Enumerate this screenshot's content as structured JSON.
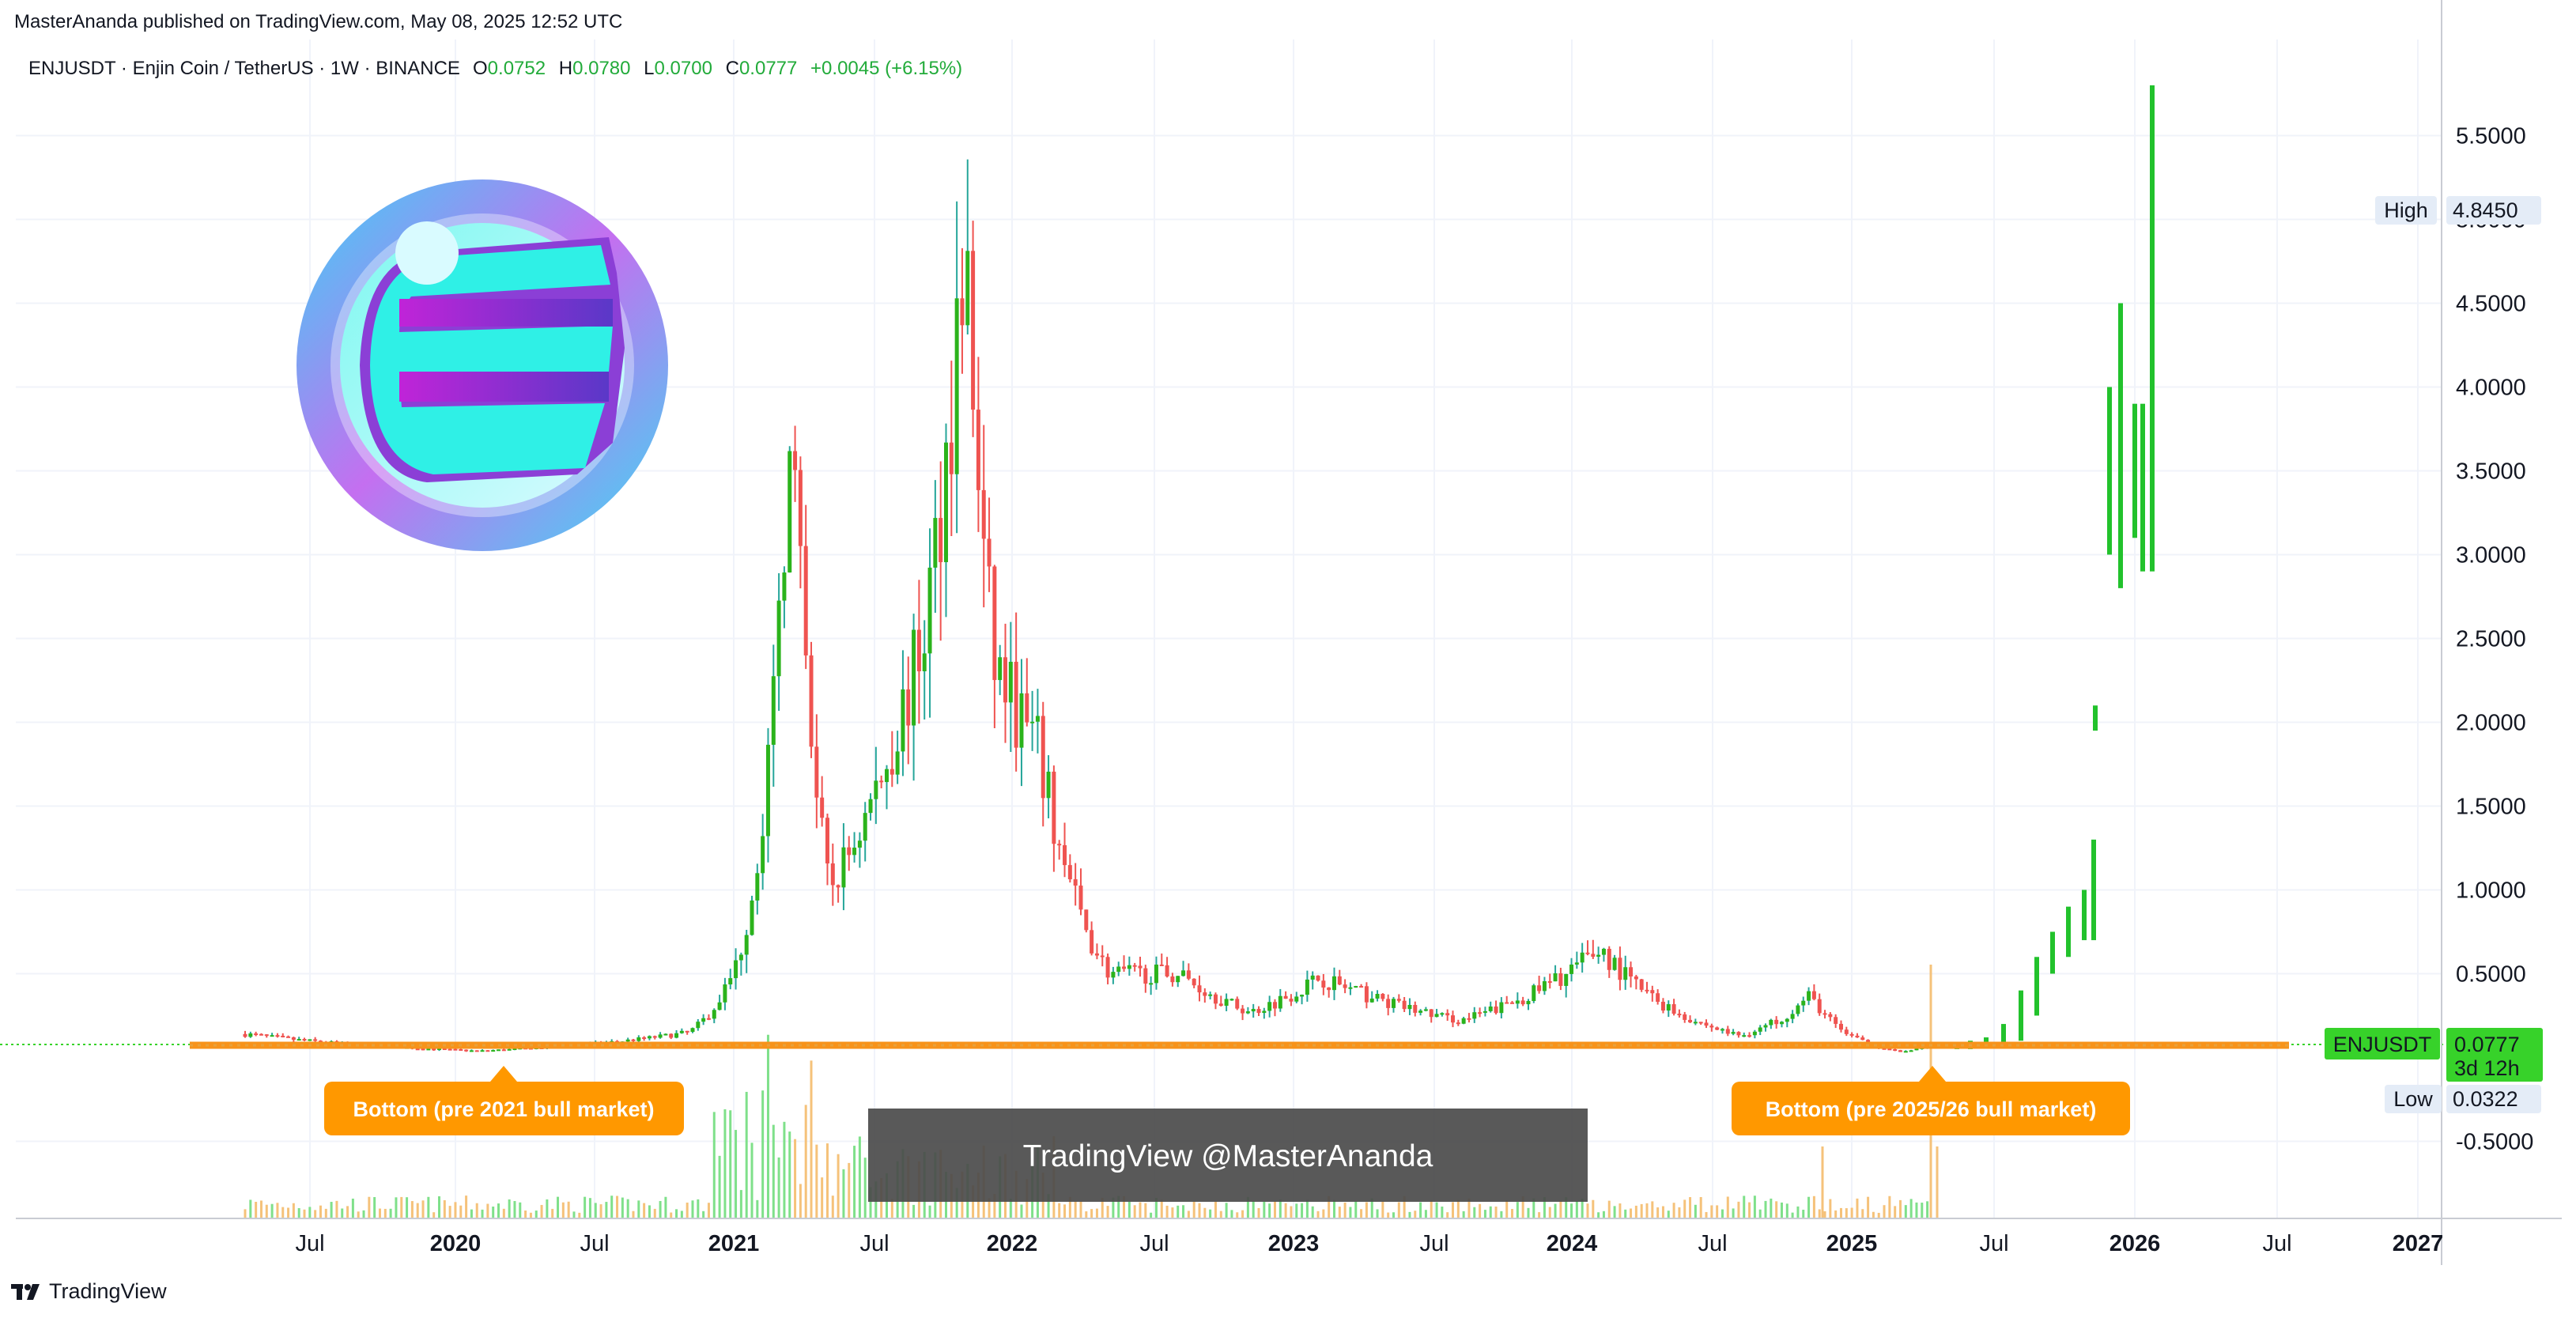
{
  "header": {
    "published": "MasterAnanda published on TradingView.com, May 08, 2025 12:52 UTC",
    "symbol_line": "ENJUSDT · Enjin Coin / TetherUS · 1W · BINANCE",
    "o_label": "O",
    "o_value": "0.0752",
    "h_label": "H",
    "h_value": "0.0780",
    "l_label": "L",
    "l_value": "0.0700",
    "c_label": "C",
    "c_value": "0.0777",
    "change": "+0.0045 (+6.15%)"
  },
  "price_axis": {
    "ticks": [
      "5.5000",
      "5.0000",
      "4.5000",
      "4.0000",
      "3.5000",
      "3.0000",
      "2.5000",
      "2.0000",
      "1.5000",
      "1.0000",
      "0.5000",
      "-0.5000"
    ],
    "high_label": "High",
    "high_value": "4.8450",
    "low_label": "Low",
    "low_value": "0.0322",
    "symbol_tag": "ENJUSDT",
    "last_price": "0.0777",
    "countdown": "3d 12h"
  },
  "time_axis": {
    "labels": [
      {
        "text": "Jul",
        "bold": false
      },
      {
        "text": "2020",
        "bold": true
      },
      {
        "text": "Jul",
        "bold": false
      },
      {
        "text": "2021",
        "bold": true
      },
      {
        "text": "Jul",
        "bold": false
      },
      {
        "text": "2022",
        "bold": true
      },
      {
        "text": "Jul",
        "bold": false
      },
      {
        "text": "2023",
        "bold": true
      },
      {
        "text": "Jul",
        "bold": false
      },
      {
        "text": "2024",
        "bold": true
      },
      {
        "text": "Jul",
        "bold": false
      },
      {
        "text": "2025",
        "bold": true
      },
      {
        "text": "Jul",
        "bold": false
      },
      {
        "text": "2026",
        "bold": true
      },
      {
        "text": "Jul",
        "bold": false
      },
      {
        "text": "2027",
        "bold": true
      }
    ]
  },
  "annotations": {
    "bottom_left": "Bottom (pre 2021 bull market)",
    "bottom_right": "Bottom (pre 2025/26 bull market)",
    "watermark": "TradingView @MasterAnanda"
  },
  "footer": {
    "brand": "TradingView",
    "logo_mark": "17"
  },
  "colors": {
    "up": "#26a69a",
    "down": "#ef5350",
    "up_candle": "#2bb31b",
    "projection": "#22c22c",
    "support": "#f7931a",
    "tag_green": "#37d22a",
    "annotation": "#ff9800"
  },
  "chart_data": {
    "type": "candlestick",
    "symbol": "ENJUSDT",
    "timeframe": "1W",
    "ylim": [
      -0.75,
      5.9
    ],
    "support_level": 0.055,
    "key_points": [
      {
        "date": "2019-05",
        "price": 0.14
      },
      {
        "date": "2020-03",
        "price": 0.04
      },
      {
        "date": "2020-12",
        "price": 0.15
      },
      {
        "date": "2021-02",
        "price": 0.55
      },
      {
        "date": "2021-04",
        "price": 3.0
      },
      {
        "date": "2021-04-10",
        "price": 4.0
      },
      {
        "date": "2021-06",
        "price": 1.0
      },
      {
        "date": "2021-08",
        "price": 1.6
      },
      {
        "date": "2021-10",
        "price": 2.5
      },
      {
        "date": "2021-11-25",
        "price": 4.845
      },
      {
        "date": "2022-01",
        "price": 2.4
      },
      {
        "date": "2022-03",
        "price": 1.8
      },
      {
        "date": "2022-06",
        "price": 0.5
      },
      {
        "date": "2022-09",
        "price": 0.5
      },
      {
        "date": "2022-12",
        "price": 0.27
      },
      {
        "date": "2023-03",
        "price": 0.48
      },
      {
        "date": "2023-09",
        "price": 0.22
      },
      {
        "date": "2024-03",
        "price": 0.65
      },
      {
        "date": "2024-09",
        "price": 0.13
      },
      {
        "date": "2024-12",
        "price": 0.37
      },
      {
        "date": "2025-04",
        "price": 0.0322
      },
      {
        "date": "2025-05",
        "price": 0.0777
      }
    ],
    "projection": [
      {
        "date": "2025-06",
        "price": 0.2
      },
      {
        "date": "2025-08",
        "price": 0.4
      },
      {
        "date": "2025-10",
        "price": 0.75
      },
      {
        "date": "2025-11",
        "price": 2.1
      },
      {
        "date": "2025-12",
        "price": 4.5
      },
      {
        "date": "2026-01",
        "price": 3.4
      },
      {
        "date": "2026-02",
        "price": 5.8
      }
    ],
    "high": 4.845,
    "low": 0.0322,
    "last": 0.0777
  }
}
